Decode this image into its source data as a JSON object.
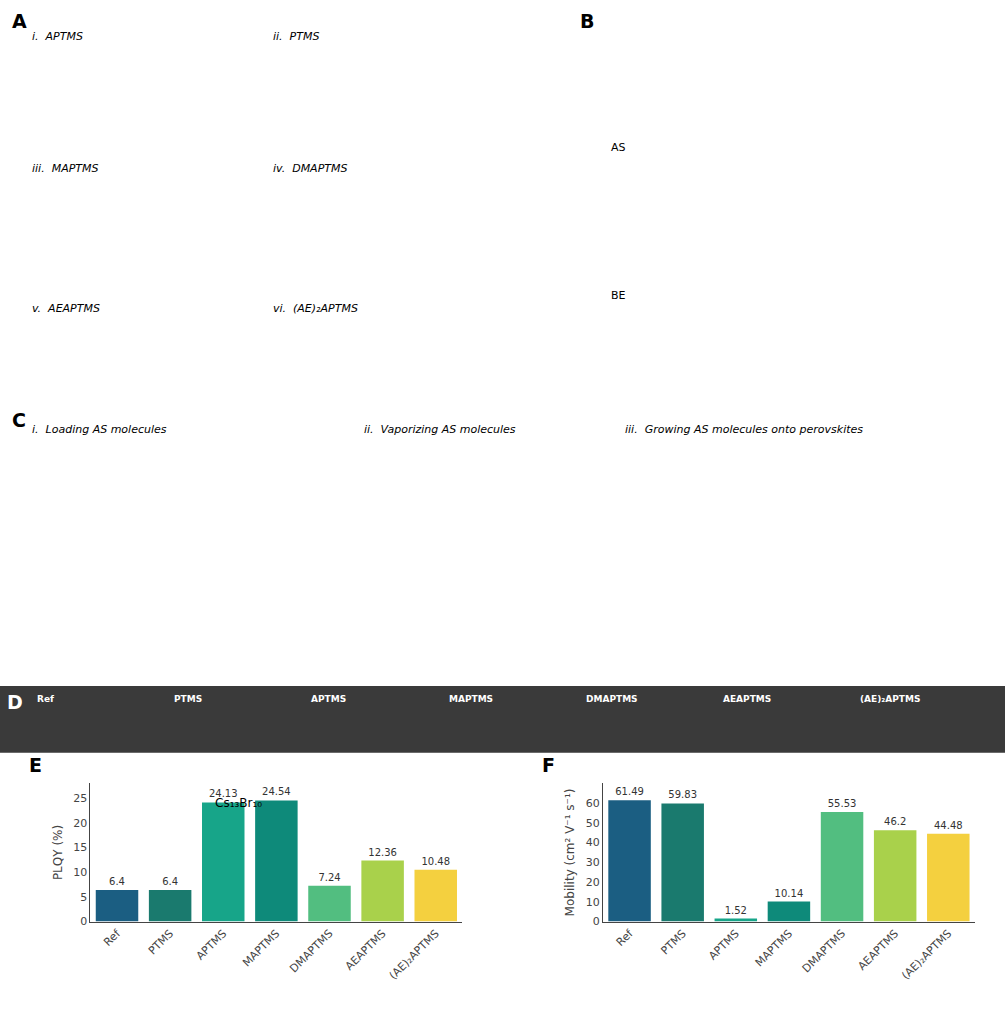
{
  "chart_data": [
    {
      "type": "bar",
      "title": "E",
      "categories": [
        "Ref",
        "PTMS",
        "APTMS",
        "MAPTMS",
        "DMAPTMS",
        "AEAPTMS",
        "(AE)₂APTMS"
      ],
      "values": [
        6.4,
        6.4,
        24.13,
        24.54,
        7.24,
        12.36,
        10.48
      ],
      "colors": [
        "#1b5e82",
        "#1a7a6e",
        "#17a589",
        "#0e8a7a",
        "#52be80",
        "#a9d14b",
        "#f4d03f"
      ],
      "ylabel": "PLQY (%)",
      "ylim": [
        0,
        28
      ],
      "yticks": [
        0,
        5,
        10,
        15,
        20,
        25
      ],
      "data_labels": true,
      "grid": false,
      "annotations": [
        "Cs₁₃Br₁₀"
      ]
    },
    {
      "type": "bar",
      "title": "F",
      "categories": [
        "Ref",
        "PTMS",
        "APTMS",
        "MAPTMS",
        "DMAPTMS",
        "AEAPTMS",
        "(AE)₂APTMS"
      ],
      "values": [
        61.49,
        59.83,
        1.52,
        10.14,
        55.53,
        46.2,
        44.48
      ],
      "colors": [
        "#1b5e82",
        "#1a7a6e",
        "#17a589",
        "#0e8a7a",
        "#52be80",
        "#a9d14b",
        "#f4d03f"
      ],
      "ylabel": "Mobility (cm² V⁻¹ s⁻¹)",
      "ylim": [
        0,
        70
      ],
      "yticks": [
        0,
        10,
        20,
        30,
        40,
        50,
        60
      ],
      "data_labels": true,
      "grid": false
    }
  ],
  "annotations": [
    "A",
    "B",
    "i.  APTMS",
    "ii.  PTMS",
    "iii.  MAPTMS",
    "iv.  DMAPTMS",
    "v.  AEAPTMS",
    "vi.  (AE)₂APTMS",
    "AS",
    "BE",
    "C",
    "i.  Loading AS molecules",
    "ii.  Vaporizing AS molecules",
    "iii.  Growing AS molecules onto perovskites",
    "D",
    "Ref",
    "PTMS",
    "APTMS",
    "MAPTMS",
    "DMAPTMS",
    "AEAPTMS",
    "(AE)₂APTMS"
  ]
}
